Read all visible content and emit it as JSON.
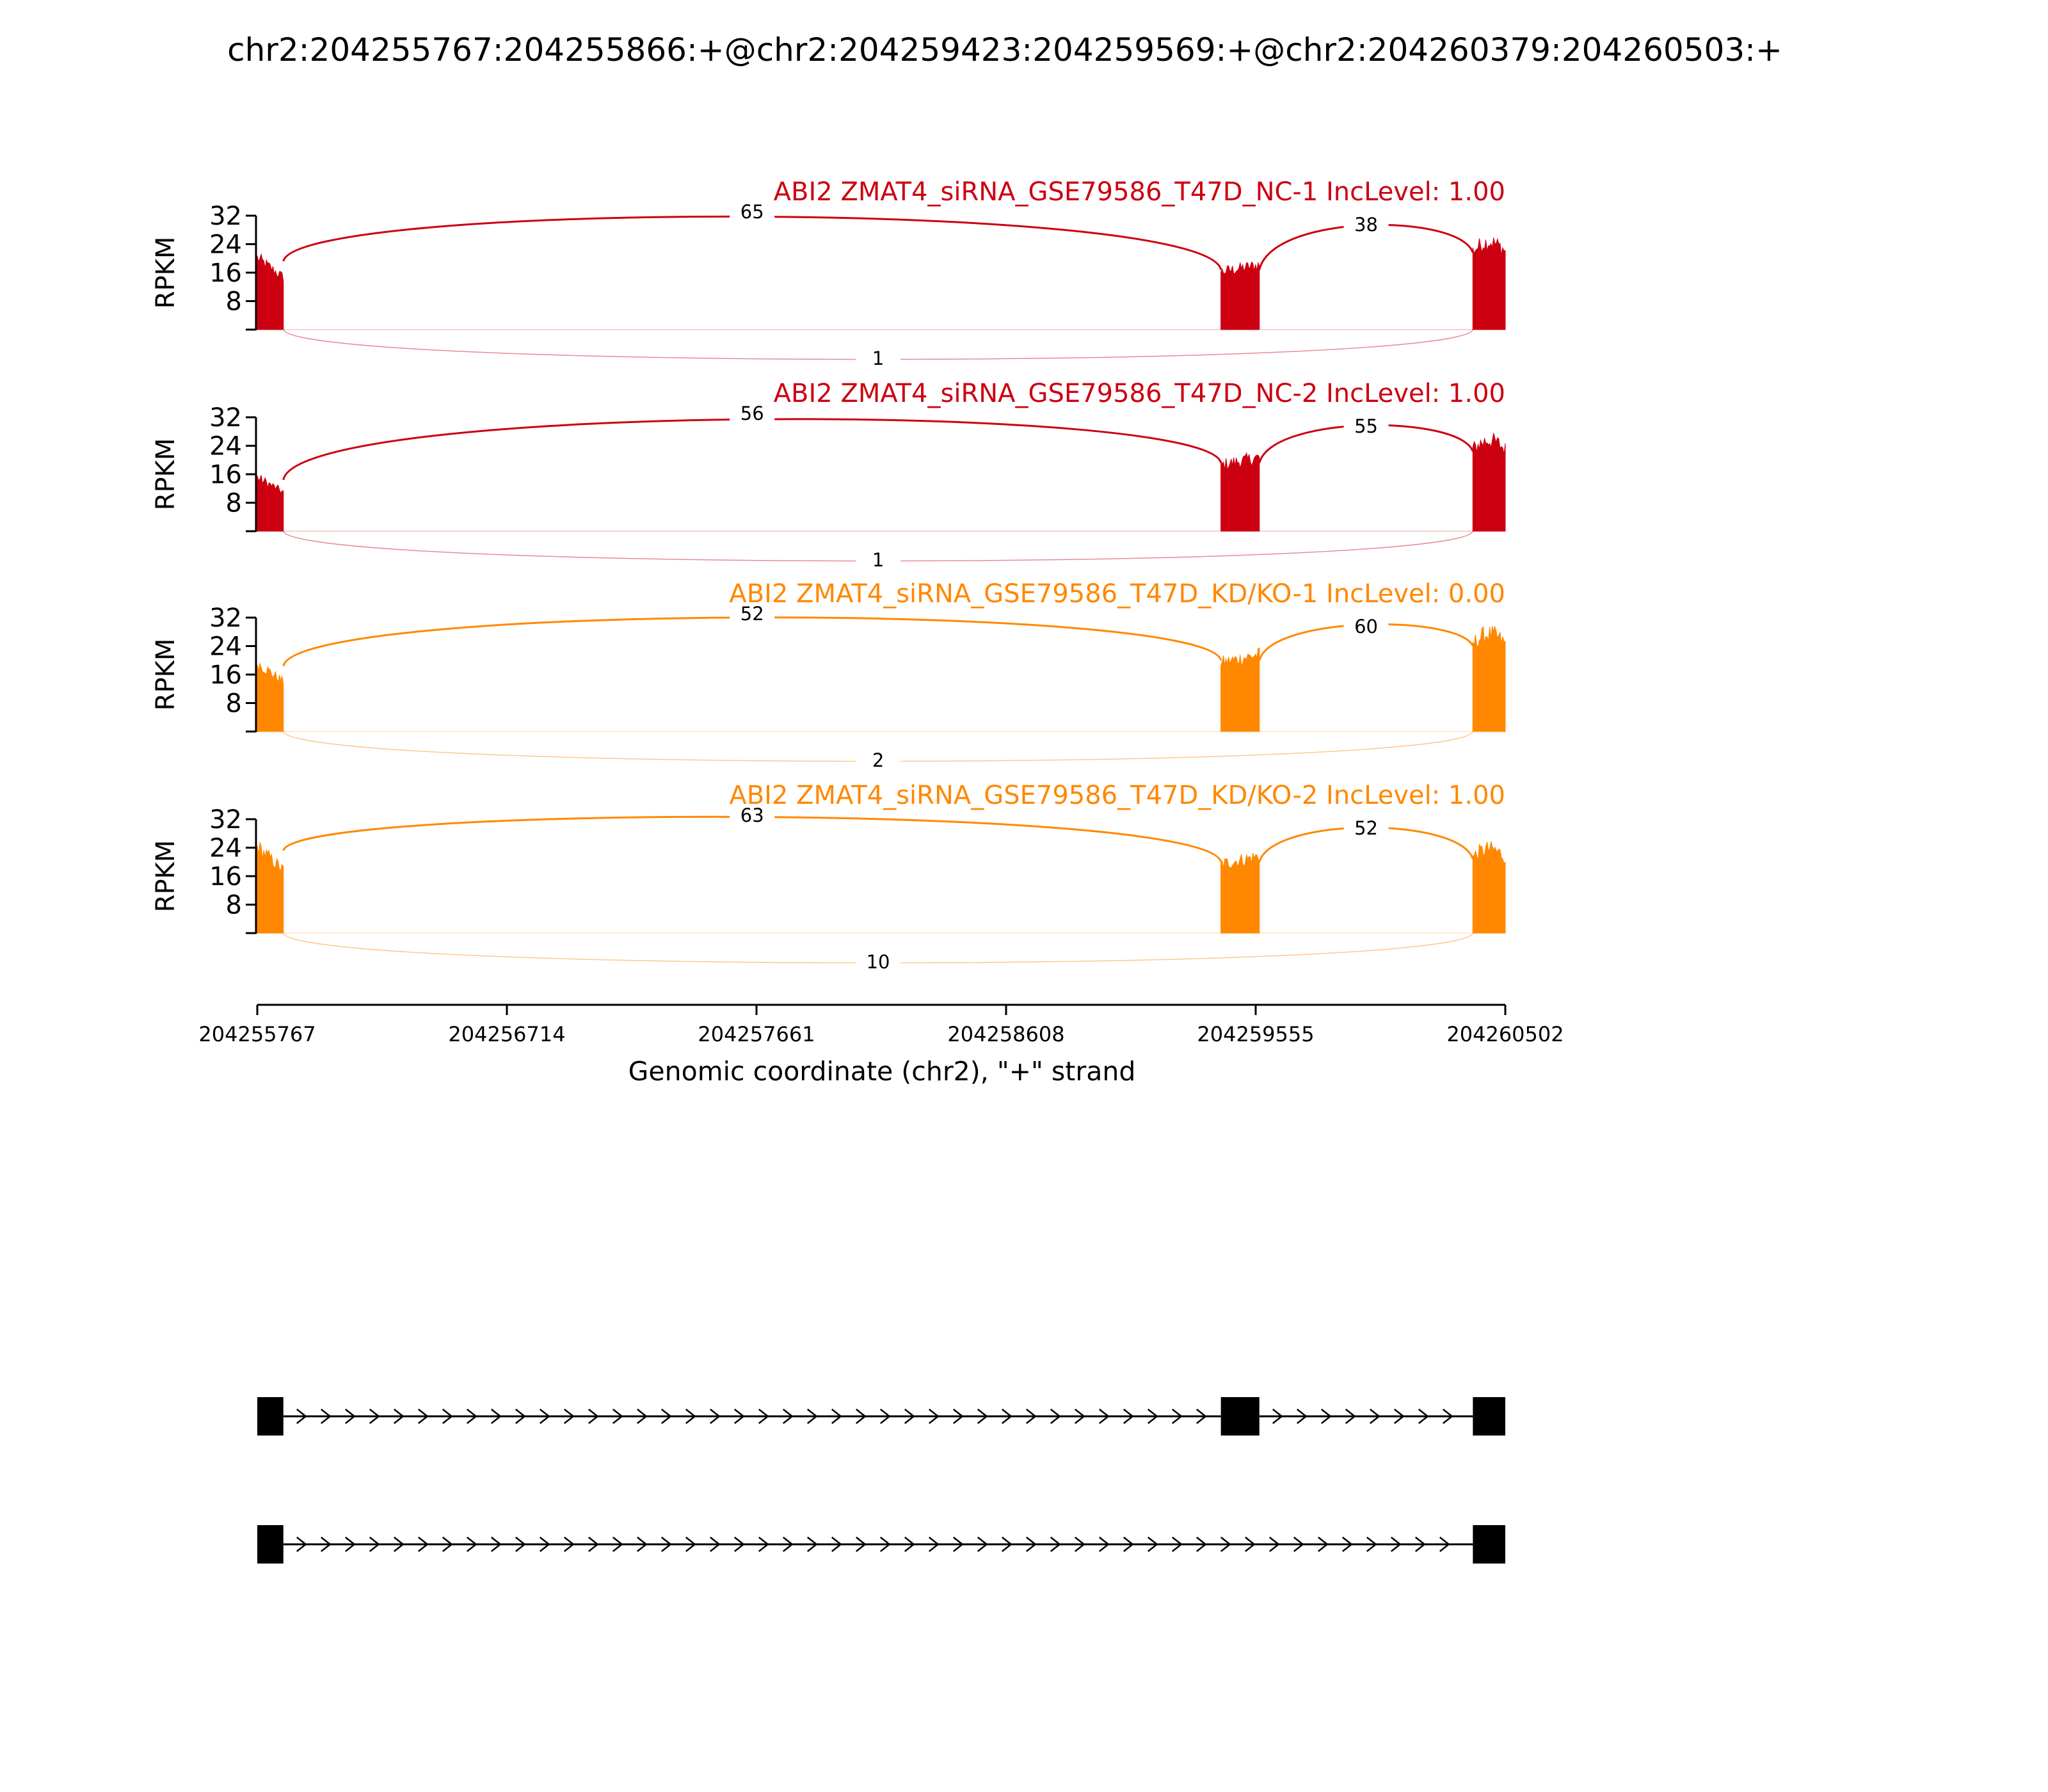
{
  "figure_title": "chr2:204255767:204255866:+@chr2:204259423:204259569:+@chr2:204260379:204260503:+",
  "chart_data": {
    "type": "area",
    "title": "chr2:204255767:204255866:+@chr2:204259423:204259569:+@chr2:204260379:204260503:+",
    "xlabel": "Genomic coordinate (chr2), \"+\" strand",
    "ylabel": "RPKM",
    "xlim": [
      204255767,
      204260502
    ],
    "ylim": [
      0,
      32
    ],
    "x_ticks": [
      "204255767",
      "204256714",
      "204257661",
      "204258608",
      "204259555",
      "204260502"
    ],
    "y_ticks": [
      "8",
      "16",
      "24",
      "32"
    ],
    "exons": [
      {
        "start": 204255767,
        "end": 204255866
      },
      {
        "start": 204259423,
        "end": 204259569
      },
      {
        "start": 204260379,
        "end": 204260503
      }
    ],
    "tracks": [
      {
        "label": "ABI2 ZMAT4_siRNA_GSE79586_T47D_NC-1 IncLevel: 1.00",
        "color": "#cc0011",
        "coverage_peaks": [
          24,
          21,
          27
        ],
        "junctions": [
          {
            "from": 204255866,
            "to": 204259423,
            "count": "65",
            "side": "above"
          },
          {
            "from": 204259569,
            "to": 204260379,
            "count": "38",
            "side": "above"
          },
          {
            "from": 204255866,
            "to": 204260379,
            "count": "1",
            "side": "below"
          }
        ]
      },
      {
        "label": "ABI2 ZMAT4_siRNA_GSE79586_T47D_NC-2 IncLevel: 1.00",
        "color": "#cc0011",
        "coverage_peaks": [
          18,
          24,
          28
        ],
        "junctions": [
          {
            "from": 204255866,
            "to": 204259423,
            "count": "56",
            "side": "above"
          },
          {
            "from": 204259569,
            "to": 204260379,
            "count": "55",
            "side": "above"
          },
          {
            "from": 204255866,
            "to": 204260379,
            "count": "1",
            "side": "below"
          }
        ]
      },
      {
        "label": "ABI2 ZMAT4_siRNA_GSE79586_T47D_KD/KO-1 IncLevel: 0.00",
        "color": "#ff8800",
        "coverage_peaks": [
          23,
          25,
          30
        ],
        "junctions": [
          {
            "from": 204255866,
            "to": 204259423,
            "count": "52",
            "side": "above"
          },
          {
            "from": 204259569,
            "to": 204260379,
            "count": "60",
            "side": "above"
          },
          {
            "from": 204255866,
            "to": 204260379,
            "count": "2",
            "side": "below"
          }
        ]
      },
      {
        "label": "ABI2 ZMAT4_siRNA_GSE79586_T47D_KD/KO-2 IncLevel: 1.00",
        "color": "#ff8800",
        "coverage_peaks": [
          29,
          25,
          26
        ],
        "junctions": [
          {
            "from": 204255866,
            "to": 204259423,
            "count": "63",
            "side": "above"
          },
          {
            "from": 204259569,
            "to": 204260379,
            "count": "52",
            "side": "above"
          },
          {
            "from": 204255866,
            "to": 204260379,
            "count": "10",
            "side": "below"
          }
        ]
      }
    ],
    "isoforms": [
      {
        "exons": [
          [
            204255767,
            204255866
          ],
          [
            204259423,
            204259569
          ],
          [
            204260379,
            204260503
          ]
        ]
      },
      {
        "exons": [
          [
            204255767,
            204255866
          ],
          [
            204260379,
            204260503
          ]
        ]
      }
    ]
  }
}
